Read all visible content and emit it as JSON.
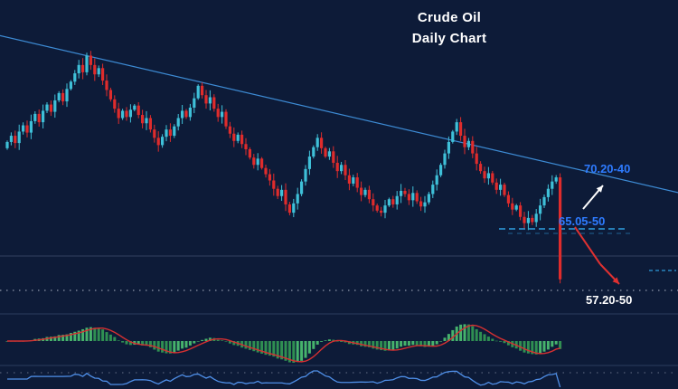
{
  "title": {
    "line1": "Crude Oil",
    "line2": "Daily Chart"
  },
  "labels": {
    "resistance": "70.20-40",
    "support": "65.05-50",
    "target": "57.20-50"
  },
  "chart_data": {
    "type": "candlestick",
    "title": "Crude Oil Daily Chart",
    "instrument": "Crude Oil",
    "timeframe": "Daily",
    "ylim": [
      57,
      86
    ],
    "grid": false,
    "legend": false,
    "closes": [
      73.0,
      73.6,
      72.9,
      74.0,
      74.6,
      73.9,
      75.0,
      75.7,
      74.9,
      76.0,
      76.6,
      75.9,
      77.0,
      77.7,
      76.9,
      78.1,
      78.8,
      79.6,
      80.4,
      79.7,
      81.3,
      80.4,
      79.5,
      80.1,
      78.9,
      78.0,
      77.1,
      76.2,
      75.3,
      76.0,
      75.4,
      76.1,
      76.5,
      75.6,
      74.8,
      75.3,
      74.2,
      73.4,
      72.7,
      73.5,
      74.2,
      73.6,
      74.5,
      75.3,
      76.0,
      75.4,
      76.3,
      77.2,
      78.4,
      77.5,
      76.7,
      77.3,
      76.2,
      75.4,
      75.9,
      74.5,
      73.8,
      73.1,
      73.7,
      72.8,
      72.3,
      71.5,
      70.8,
      71.4,
      70.5,
      69.9,
      69.3,
      68.5,
      67.8,
      68.4,
      67.0,
      66.2,
      67.1,
      68.0,
      69.2,
      70.4,
      71.6,
      72.5,
      73.4,
      72.4,
      71.6,
      72.1,
      71.0,
      70.2,
      70.8,
      69.8,
      69.0,
      69.6,
      68.6,
      67.9,
      68.4,
      67.5,
      66.9,
      66.4,
      66.2,
      66.9,
      67.5,
      67.0,
      67.8,
      68.3,
      68.0,
      67.4,
      68.1,
      67.3,
      66.8,
      67.2,
      68.0,
      68.9,
      69.8,
      70.8,
      71.9,
      73.0,
      74.0,
      74.9,
      73.6,
      72.5,
      73.1,
      71.9,
      70.9,
      70.2,
      69.5,
      70.0,
      69.1,
      68.4,
      68.9,
      67.9,
      67.1,
      66.5,
      66.9,
      65.8,
      65.2,
      65.7,
      65.3,
      66.1,
      66.9,
      67.7,
      68.5,
      69.2,
      69.6,
      59.8
    ],
    "price_levels": [
      {
        "label": "70.20-40",
        "zone": [
          70.2,
          70.4
        ],
        "role": "resistance"
      },
      {
        "label": "65.05-50",
        "zone": [
          65.05,
          65.5
        ],
        "role": "support"
      },
      {
        "label": "57.20-50",
        "zone": [
          57.2,
          57.5
        ],
        "role": "target"
      }
    ],
    "trendline": {
      "type": "descending-resistance",
      "start_price": 83.3,
      "end_price": 68.1
    },
    "indicators": [
      {
        "name": "awesome-oscillator",
        "style": "histogram",
        "colors": [
          "#46b36c",
          "#2f8f52"
        ],
        "signal_line_color": "#d63031"
      },
      {
        "name": "momentum",
        "style": "line",
        "color": "#4f8fe8"
      }
    ],
    "annotations": [
      {
        "type": "arrow",
        "color": "#ffffff",
        "direction": "up-right",
        "near_label": "70.20-40"
      },
      {
        "type": "arrow",
        "color": "#e03131",
        "direction": "down-right",
        "near_label": "57.20-50"
      }
    ]
  },
  "colors": {
    "background": "#0d1b38",
    "bull": "#3fc0d8",
    "bear": "#df2c2c",
    "trendline": "#3d8bd4",
    "title_text": "#ffffff",
    "level_label_blue": "#2e7bff",
    "level_label_white": "#ffffff",
    "support_dash": "#2f9fe0",
    "separator": "#2c3d5e",
    "dotted_guide": "#e8eefb"
  }
}
